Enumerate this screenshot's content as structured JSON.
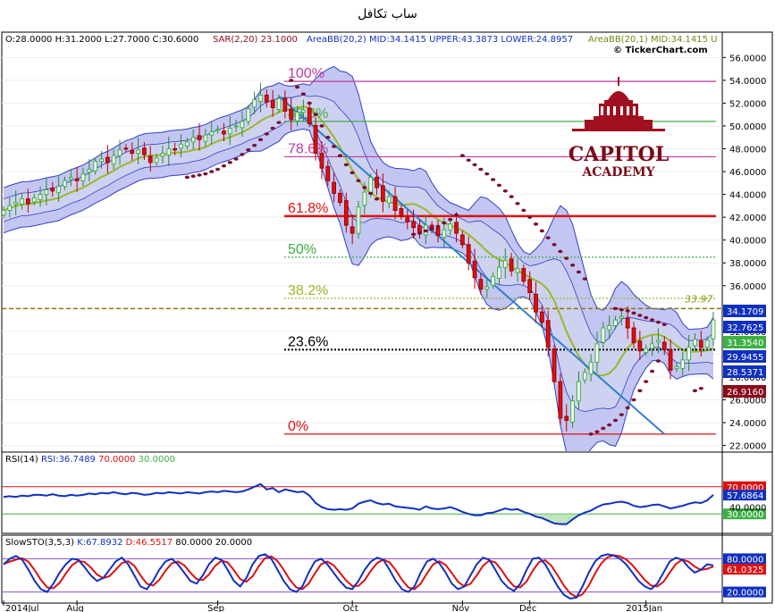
{
  "page": {
    "title": "ساب تكافل"
  },
  "header": {
    "ohlc": "O:28.0000 H:31.2000 L:27.7000 C:30.6000",
    "sar": "SAR(2,20) 23.1000",
    "bb": "AreaBB(20,2) MID:34.1415 UPPER:43.3873 LOWER:24.8957",
    "bb1": "AreaBB(20,1) MID:34.1415 U",
    "watermark": "© TickerChart.com"
  },
  "logo": {
    "line1": "CAPITOL",
    "line2": "ACADEMY"
  },
  "colors": {
    "up_candle": "#3cb043",
    "down_candle": "#e01010",
    "bb_outer": "#b8bcf0",
    "bb_inner": "#d8dcf6",
    "bb_line": "#3040c8",
    "sma_line": "#9ab82a",
    "sar_dot": "#7a1030",
    "trendline": "#2f80d0",
    "rsi_line": "#1030c0",
    "sto_k": "#1030c0",
    "sto_d": "#e01010"
  },
  "chart_data": [
    {
      "type": "candlestick",
      "title": "ساب تكافل",
      "ylim": [
        21.5,
        57.2
      ],
      "y_ticks": [
        "56.0000",
        "54.0000",
        "52.0000",
        "50.0000",
        "48.0000",
        "46.0000",
        "44.0000",
        "42.0000",
        "40.0000",
        "38.0000",
        "36.0000",
        "34.0000",
        "32.0000",
        "30.0000",
        "28.0000",
        "26.0000",
        "24.0000",
        "22.0000"
      ],
      "x_labels": [
        "2014Jul",
        "Aug",
        "Sep",
        "Oct",
        "Nov",
        "Dec",
        "2015Jan"
      ],
      "price_annotation": "33.97",
      "fibonacci": [
        {
          "label": "100%",
          "value": 53.9,
          "color": "#c03aa0"
        },
        {
          "label": "88.6%",
          "value": 50.4,
          "color": "#3cb043"
        },
        {
          "label": "78.6%",
          "value": 47.3,
          "color": "#c03aa0"
        },
        {
          "label": "61.8%",
          "value": 42.1,
          "color": "#e01010"
        },
        {
          "label": "50%",
          "value": 38.5,
          "color": "#3cb043"
        },
        {
          "label": "38.2%",
          "value": 34.9,
          "color": "#9ab82a"
        },
        {
          "label": "23.6%",
          "value": 30.4,
          "color": "#000000"
        },
        {
          "label": "0%",
          "value": 23.0,
          "color": "#e01010"
        }
      ],
      "value_boxes": [
        {
          "label": "34.1709",
          "value": 34.17,
          "bg": "#1030c0"
        },
        {
          "label": "32.7625",
          "value": 32.76,
          "bg": "#1030c0"
        },
        {
          "label": "31.3540",
          "value": 31.35,
          "bg": "#3cb043"
        },
        {
          "label": "29.9455",
          "value": 29.95,
          "bg": "#1030c0"
        },
        {
          "label": "28.5371",
          "value": 28.54,
          "bg": "#1030c0"
        },
        {
          "label": "26.9160",
          "value": 26.92,
          "bg": "#8b0a1a"
        }
      ],
      "closes": [
        42.6,
        43.0,
        43.3,
        43.6,
        43.2,
        43.7,
        44.0,
        44.4,
        44.3,
        44.7,
        45.2,
        45.5,
        45.2,
        45.8,
        46.2,
        46.9,
        47.1,
        46.8,
        47.4,
        47.9,
        48.0,
        47.6,
        47.9,
        47.5,
        46.8,
        47.2,
        47.6,
        48.0,
        47.9,
        48.4,
        48.6,
        49.0,
        48.8,
        49.2,
        49.5,
        49.7,
        49.3,
        49.8,
        50.0,
        50.4,
        51.5,
        52.3,
        52.7,
        52.1,
        51.6,
        52.4,
        51.3,
        50.6,
        51.2,
        51.4,
        50.2,
        47.6,
        46.3,
        45.2,
        44.1,
        43.3,
        41.3,
        40.6,
        42.9,
        44.2,
        45.5,
        44.6,
        43.4,
        43.8,
        42.6,
        42.1,
        41.6,
        41.1,
        40.6,
        41.3,
        40.9,
        40.4,
        40.9,
        41.4,
        40.6,
        39.6,
        38.0,
        36.7,
        35.7,
        35.9,
        36.8,
        37.6,
        38.2,
        37.3,
        37.5,
        36.4,
        35.4,
        33.7,
        32.8,
        30.6,
        27.6,
        24.4,
        24.2,
        25.9,
        27.6,
        28.4,
        29.3,
        30.9,
        32.3,
        32.5,
        33.0,
        33.3,
        32.3,
        31.0,
        30.3,
        30.5,
        30.9,
        31.2,
        30.4,
        28.6,
        28.9,
        29.5,
        30.6,
        31.3,
        30.6,
        31.2,
        33.0
      ],
      "sar_values": [
        {
          "start_bar": 30,
          "values": [
            45.5,
            45.6,
            45.7,
            45.8,
            46.0,
            46.2,
            46.5,
            46.8,
            47.1,
            47.5,
            47.9,
            48.3,
            48.8,
            49.3,
            49.8,
            50.3
          ]
        },
        {
          "start_bar": 47,
          "values": [
            54.0,
            53.4,
            52.8,
            52.0,
            51.0,
            50.0,
            49.0,
            48.2,
            47.4,
            46.6,
            45.9,
            45.2,
            44.6,
            44.1,
            43.6
          ]
        },
        {
          "start_bar": 67,
          "values": [
            40.5,
            40.6,
            40.8,
            41.0,
            41.2,
            41.5,
            41.8,
            42.2
          ]
        },
        {
          "start_bar": 75,
          "values": [
            47.4,
            47.0,
            46.6,
            46.2,
            45.8,
            45.3,
            44.8,
            44.3,
            43.8,
            43.2,
            42.6,
            42.0,
            41.4,
            40.8,
            40.2,
            39.6,
            39.0,
            38.4,
            37.8,
            37.2,
            36.6
          ]
        },
        {
          "start_bar": 96,
          "values": [
            23.0,
            23.2,
            23.5,
            23.8,
            24.2,
            24.7,
            25.3,
            26.0,
            26.8,
            27.6,
            28.5,
            29.4
          ]
        },
        {
          "start_bar": 100,
          "values": [
            34.0,
            33.9,
            33.8,
            33.6,
            33.4,
            33.2,
            33.0,
            32.8,
            32.6
          ]
        },
        {
          "start_bar": 113,
          "values": [
            26.8,
            27.0
          ]
        }
      ]
    },
    {
      "type": "line",
      "title": "RSI(14)",
      "legend": "RSI(14) RSI:36.7489 70.0000 30.0000",
      "levels": [
        70,
        30
      ],
      "value_boxes": [
        {
          "label": "70.0000",
          "value": 70,
          "bg": "#e01010"
        },
        {
          "label": "57.6864",
          "value": 57.69,
          "bg": "#1030c0"
        },
        {
          "label": "30.0000",
          "value": 30,
          "bg": "#3cb043"
        }
      ],
      "ylim": [
        0,
        100
      ],
      "values": [
        55,
        56,
        55,
        57,
        56,
        58,
        58,
        57,
        59,
        57,
        56,
        58,
        57,
        58,
        60,
        59,
        61,
        60,
        62,
        60,
        59,
        61,
        60,
        58,
        59,
        61,
        60,
        62,
        61,
        60,
        62,
        61,
        60,
        62,
        63,
        62,
        64,
        63,
        62,
        63,
        66,
        70,
        74,
        66,
        68,
        62,
        66,
        64,
        62,
        63,
        57,
        46,
        40,
        37,
        36,
        37,
        36,
        38,
        45,
        48,
        50,
        46,
        44,
        45,
        41,
        40,
        39,
        38,
        36,
        41,
        38,
        37,
        38,
        40,
        37,
        33,
        30,
        28,
        28,
        31,
        32,
        35,
        38,
        36,
        37,
        33,
        30,
        26,
        24,
        20,
        16,
        15,
        15,
        22,
        28,
        32,
        35,
        40,
        44,
        45,
        47,
        48,
        46,
        42,
        40,
        41,
        43,
        44,
        41,
        38,
        40,
        42,
        45,
        47,
        46,
        50,
        58
      ]
    },
    {
      "type": "line",
      "title": "SlowSTO(3,5,3)",
      "legend": "SlowSTO(3,5,3) K:67.8932 D:46.5517 80.0000 20.0000",
      "levels": [
        80,
        20
      ],
      "value_boxes": [
        {
          "label": "80.0000",
          "value": 80,
          "bg": "#1030c0"
        },
        {
          "label": "61.0325",
          "value": 61.03,
          "bg": "#e01010"
        },
        {
          "label": "20.0000",
          "value": 20,
          "bg": "#1030c0"
        }
      ],
      "ylim": [
        0,
        100
      ],
      "k_values": [
        70,
        80,
        85,
        78,
        60,
        40,
        25,
        20,
        35,
        55,
        70,
        80,
        78,
        65,
        50,
        40,
        45,
        60,
        75,
        82,
        70,
        50,
        30,
        25,
        40,
        60,
        75,
        80,
        70,
        55,
        40,
        35,
        50,
        70,
        82,
        78,
        60,
        40,
        30,
        45,
        70,
        85,
        88,
        80,
        60,
        40,
        25,
        20,
        30,
        55,
        75,
        80,
        70,
        55,
        40,
        28,
        25,
        40,
        60,
        75,
        82,
        78,
        60,
        40,
        25,
        20,
        30,
        55,
        75,
        80,
        72,
        55,
        35,
        25,
        30,
        50,
        70,
        82,
        78,
        60,
        40,
        28,
        22,
        35,
        60,
        80,
        82,
        70,
        50,
        30,
        15,
        8,
        10,
        30,
        55,
        75,
        85,
        88,
        86,
        80,
        70,
        55,
        40,
        30,
        25,
        35,
        55,
        75,
        82,
        78,
        65,
        55,
        60,
        70,
        68
      ]
    }
  ]
}
